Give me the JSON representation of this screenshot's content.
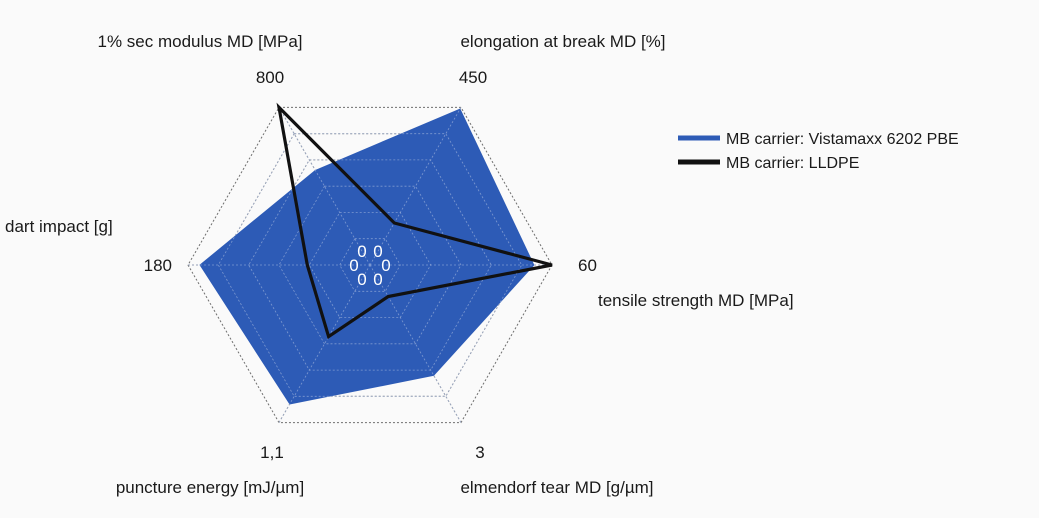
{
  "chart_data": {
    "type": "radar",
    "axes": [
      {
        "label": "1% sec modulus MD [MPa]",
        "max_label": "800",
        "max": 800
      },
      {
        "label": "elongation at break MD [%]",
        "max_label": "450",
        "max": 450
      },
      {
        "label": "tensile strength MD [MPa]",
        "max_label": "60",
        "max": 60
      },
      {
        "label": "elmendorf tear MD  [g/µm]",
        "max_label": "3",
        "max": 3
      },
      {
        "label": "puncture energy [mJ/µm]",
        "max_label": "1,1",
        "max": 1.1
      },
      {
        "label": "dart impact [g]",
        "max_label": "180",
        "max": 180
      }
    ],
    "center_labels": [
      "0",
      "0",
      "0",
      "0",
      "0",
      "0"
    ],
    "series": [
      {
        "name": "MB carrier: Vistamaxx 6202 PBE",
        "color": "#2d5bb6",
        "values": [
          480,
          445,
          54,
          2.1,
          0.97,
          168
        ]
      },
      {
        "name": "MB carrier: LLDPE",
        "color": "#111111",
        "values": [
          800,
          120,
          60,
          0.6,
          0.5,
          62
        ]
      }
    ],
    "grid_levels": 6,
    "legend_position": "right"
  }
}
